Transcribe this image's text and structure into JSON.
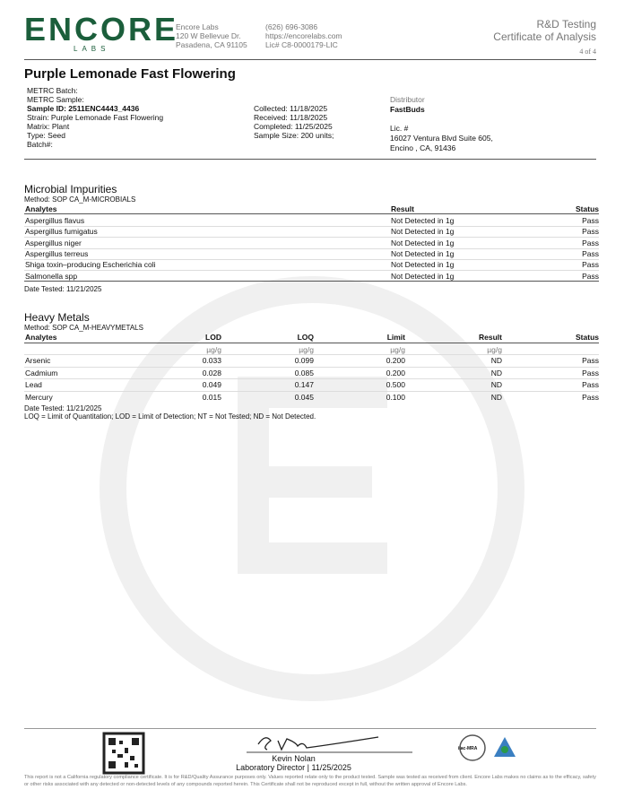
{
  "header": {
    "logo": "ENCORE",
    "logo_sub": "LABS",
    "company": [
      "Encore Labs",
      "120 W Bellevue Dr.",
      "Pasadena, CA 91105"
    ],
    "contact": [
      "(626) 696-3086",
      "https://encorelabs.com",
      "Lic# C8-0000179-LIC"
    ],
    "report_type": "R&D Testing",
    "report_title": "Certificate of Analysis",
    "page": "4 of 4"
  },
  "sample": {
    "title": "Purple Lemonade Fast Flowering",
    "left": [
      "METRC Batch:",
      "METRC Sample:",
      "Sample ID: 2511ENC4443_4436",
      "Strain: Purple Lemonade Fast Flowering",
      "Matrix: Plant",
      "Type: Seed",
      "Batch#:"
    ],
    "middle": [
      "Collected: 11/18/2025",
      "Received: 11/18/2025",
      "Completed: 11/25/2025",
      "Sample Size: 200 units;"
    ],
    "distributor_label": "Distributor",
    "distributor_name": "FastBuds",
    "license": "Lic. #",
    "address": [
      "16027 Ventura Blvd Suite 605,",
      "Encino , CA, 91436"
    ]
  },
  "microbial": {
    "title": "Microbial Impurities",
    "method": "Method: SOP CA_M-MICROBIALS",
    "headers": [
      "Analytes",
      "Result",
      "Status"
    ],
    "rows": [
      [
        "Aspergillus flavus",
        "Not Detected in 1g",
        "Pass"
      ],
      [
        "Aspergillus fumigatus",
        "Not Detected in 1g",
        "Pass"
      ],
      [
        "Aspergillus niger",
        "Not Detected in 1g",
        "Pass"
      ],
      [
        "Aspergillus terreus",
        "Not Detected in 1g",
        "Pass"
      ],
      [
        "Shiga toxin–producing Escherichia coli",
        "Not Detected in 1g",
        "Pass"
      ],
      [
        "Salmonella spp",
        "Not Detected in 1g",
        "Pass"
      ]
    ],
    "date_tested": "Date Tested: 11/21/2025"
  },
  "heavy_metals": {
    "title": "Heavy Metals",
    "method": "Method: SOP CA_M-HEAVYMETALS",
    "headers": [
      "Analytes",
      "LOD",
      "LOQ",
      "Limit",
      "Result",
      "Status"
    ],
    "units": [
      "µg/g",
      "µg/g",
      "µg/g",
      "µg/g"
    ],
    "rows": [
      [
        "Arsenic",
        "0.033",
        "0.099",
        "0.200",
        "ND",
        "Pass"
      ],
      [
        "Cadmium",
        "0.028",
        "0.085",
        "0.200",
        "ND",
        "Pass"
      ],
      [
        "Lead",
        "0.049",
        "0.147",
        "0.500",
        "ND",
        "Pass"
      ],
      [
        "Mercury",
        "0.015",
        "0.045",
        "0.100",
        "ND",
        "Pass"
      ]
    ],
    "date_tested": "Date Tested: 11/21/2025",
    "footnote": "LOQ = Limit of Quantitation; LOD = Limit of Detection; NT = Not Tested; ND = Not Detected."
  },
  "footer": {
    "signer": "Kevin Nolan",
    "role": "Laboratory Director | 11/25/2025",
    "accreditation": "ilac-MRA",
    "disclaimer": "This report is not a California regulatory compliance certificate. It is for R&D/Quality Assurance purposes only. Values reported relate only to the product tested. Sample was tested as received from client. Encore Labs makes no claims as to the efficacy, safety or other risks associated with any detected or non-detected levels of any compounds reported herein. This Certificate shall not be reproduced except in full, without the written approval of Encore Labs."
  }
}
